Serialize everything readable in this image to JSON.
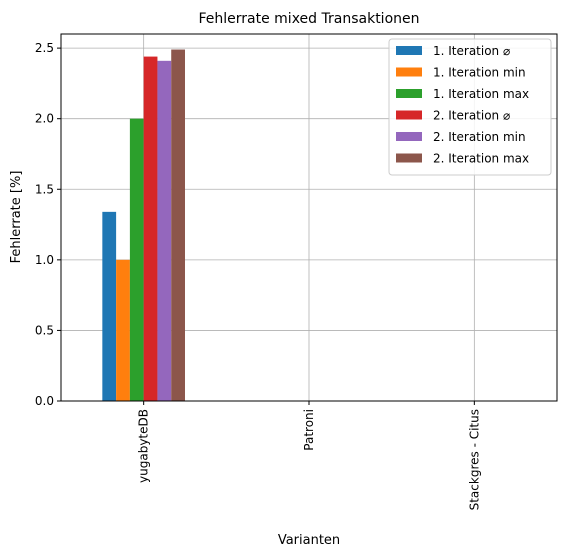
{
  "chart_data": {
    "type": "bar",
    "title": "Fehlerrate mixed Transaktionen",
    "xlabel": "Varianten",
    "ylabel": "Fehlerrate [%]",
    "categories": [
      "yugabyteDB",
      "Patroni",
      "Stackgres - Citus"
    ],
    "ylim": [
      0,
      2.6
    ],
    "yticks": [
      0.0,
      0.5,
      1.0,
      1.5,
      2.0,
      2.5
    ],
    "ytick_labels": [
      "0.0",
      "0.5",
      "1.0",
      "1.5",
      "2.0",
      "2.5"
    ],
    "grid": true,
    "legend_position": "top-right",
    "series": [
      {
        "name": "1. Iteration ⌀",
        "color": "#1f77b4",
        "values": [
          1.34,
          0,
          0
        ]
      },
      {
        "name": "1. Iteration min",
        "color": "#ff7f0e",
        "values": [
          1.0,
          0,
          0
        ]
      },
      {
        "name": "1. Iteration max",
        "color": "#2ca02c",
        "values": [
          2.0,
          0,
          0
        ]
      },
      {
        "name": "2. Iteration ⌀",
        "color": "#d62728",
        "values": [
          2.44,
          0,
          0
        ]
      },
      {
        "name": "2. Iteration min",
        "color": "#9467bd",
        "values": [
          2.41,
          0,
          0
        ]
      },
      {
        "name": "2. Iteration max",
        "color": "#8c564b",
        "values": [
          2.49,
          0,
          0
        ]
      }
    ]
  }
}
